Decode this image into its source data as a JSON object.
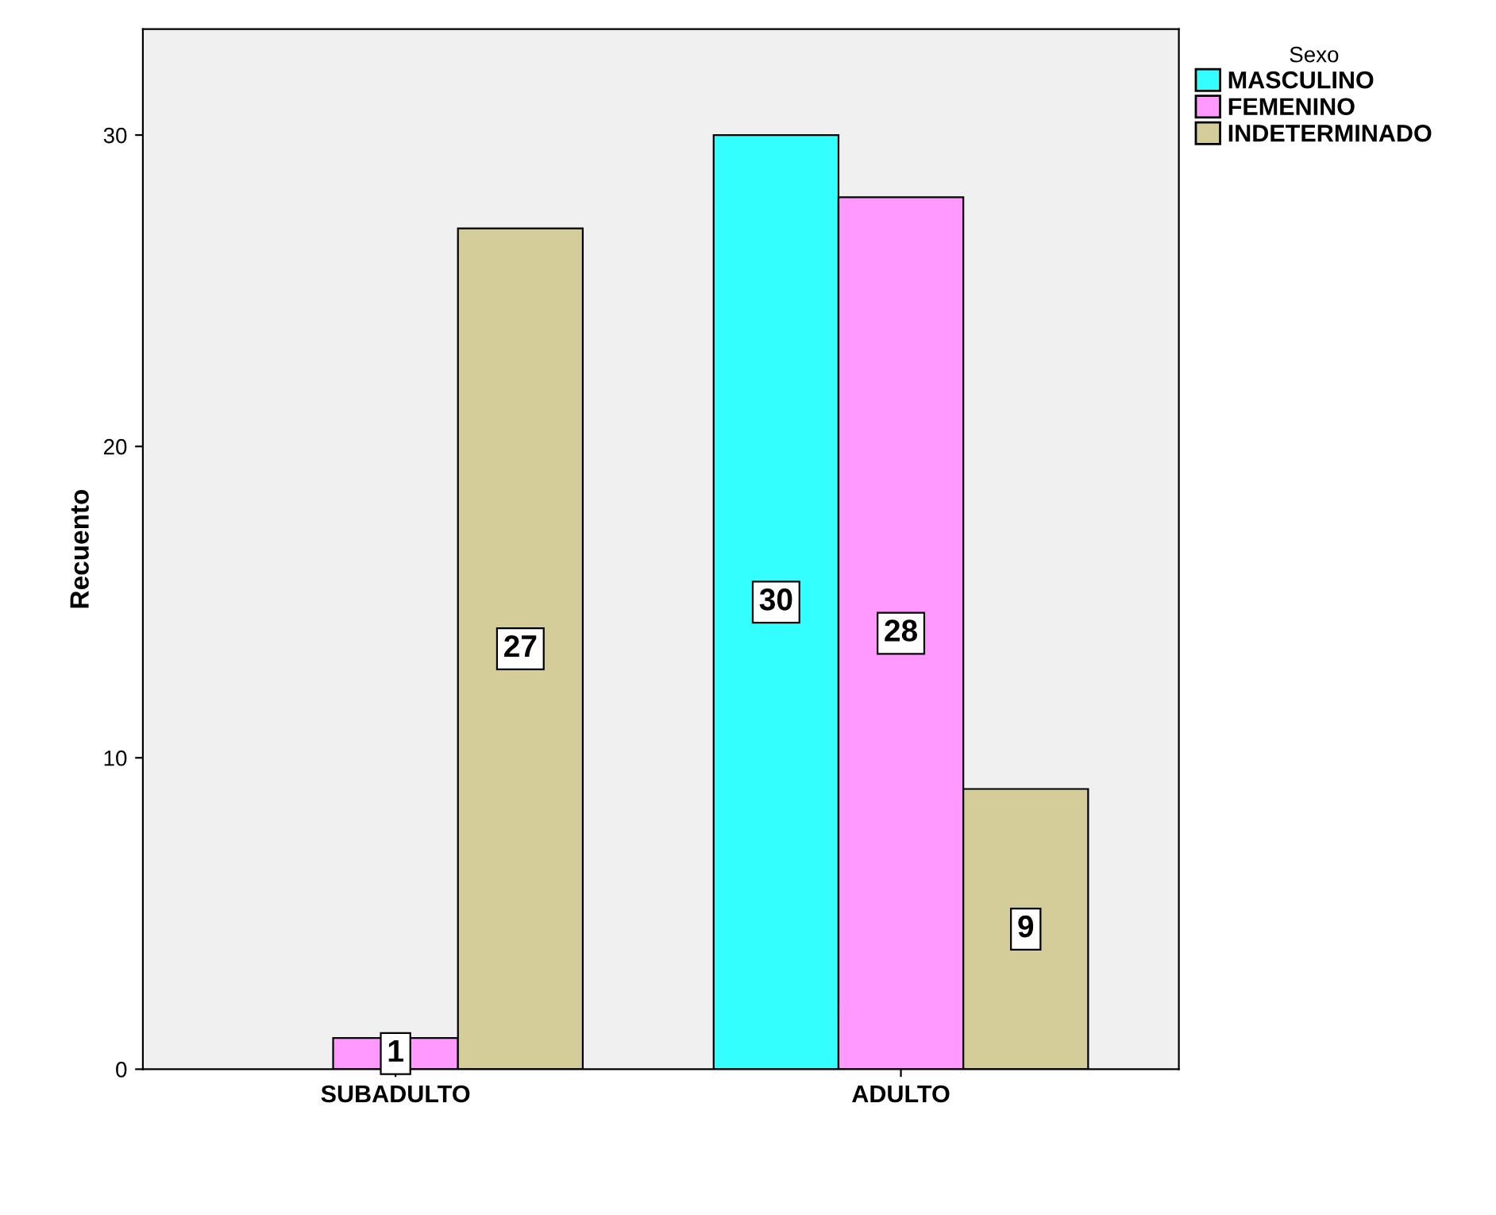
{
  "chart_data": {
    "type": "bar",
    "ylabel": "Recuento",
    "legend_title": "Sexo",
    "categories": [
      "SUBADULTO",
      "ADULTO"
    ],
    "series": [
      {
        "name": "MASCULINO",
        "color": "#33ffff",
        "values": [
          null,
          30
        ]
      },
      {
        "name": "FEMENINO",
        "color": "#ff99ff",
        "values": [
          1,
          28
        ]
      },
      {
        "name": "INDETERMINADO",
        "color": "#d4cc99",
        "values": [
          27,
          9
        ]
      }
    ],
    "ylim": [
      0,
      33.4
    ],
    "yticks": [
      0,
      10,
      20,
      30
    ],
    "grid": false,
    "legend": "top right",
    "data_labels": true
  }
}
